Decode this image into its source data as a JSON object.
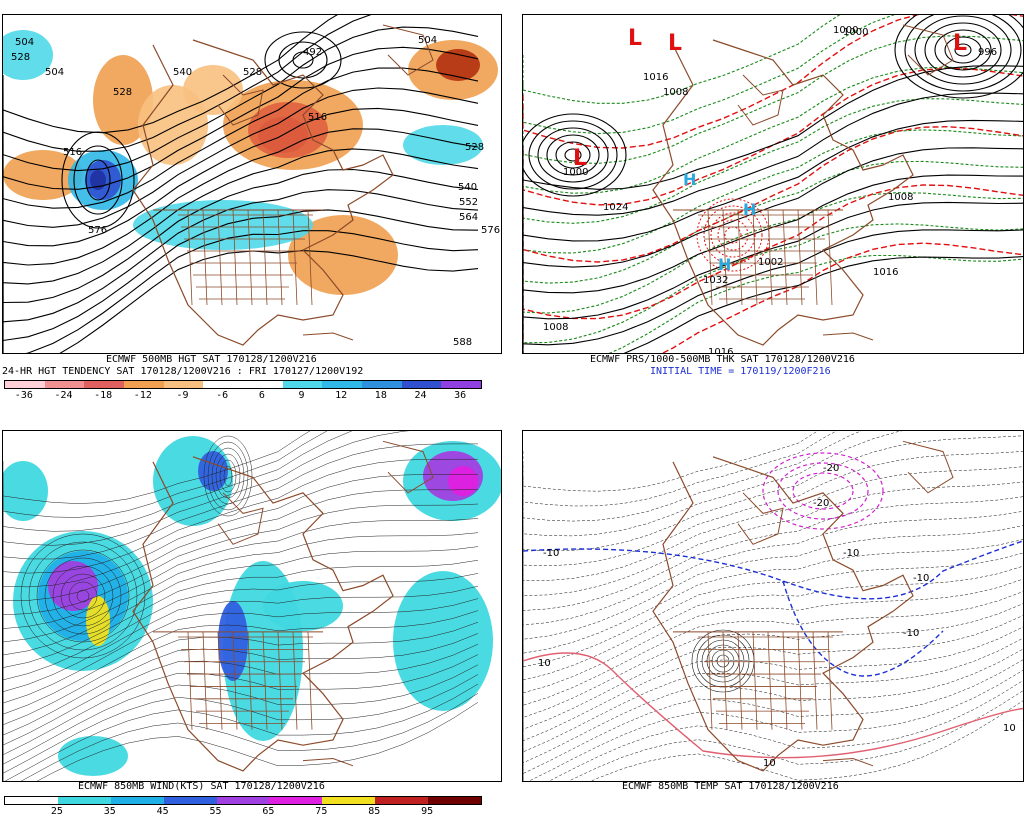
{
  "panels": {
    "height_500mb": {
      "caption_line1": "ECMWF 500MB HGT SAT 170128/1200V216",
      "caption_line2": "24-HR HGT TENDENCY SAT 170128/1200V216 : FRI 170127/1200V192",
      "contour_labels": [
        "504",
        "504",
        "528",
        "492",
        "516",
        "540",
        "528",
        "516",
        "576",
        "528",
        "540",
        "552",
        "564",
        "576",
        "588",
        "528",
        "504"
      ],
      "colorbar_ticks": [
        "-36",
        "-24",
        "-18",
        "-12",
        "-9",
        "-6",
        "6",
        "9",
        "12",
        "18",
        "24",
        "36"
      ],
      "colorbar_colors": [
        "#ffd0d8",
        "#f09090",
        "#e06060",
        "#f0a050",
        "#f8c080",
        "#ffffff",
        "#ffffff",
        "#50d8e8",
        "#30b8e8",
        "#3090e0",
        "#3050d0",
        "#9040e0"
      ]
    },
    "surface_pressure": {
      "caption_line1": "ECMWF PRS/1000-500MB THK SAT 170128/1200V216",
      "caption_line2": "INITIAL TIME = 170119/1200F216",
      "pressure_labels": [
        "1000",
        "1016",
        "1008",
        "1000",
        "1024",
        "1002",
        "1008",
        "1016",
        "1032",
        "1008",
        "1016",
        "1000",
        "996"
      ],
      "center_labels": [
        "L",
        "L",
        "L",
        "L",
        "H",
        "H",
        "H"
      ]
    },
    "wind_850mb": {
      "caption_line1": "ECMWF 850MB WIND(KTS) SAT 170128/1200V216",
      "colorbar_ticks": [
        "25",
        "35",
        "45",
        "55",
        "65",
        "75",
        "85",
        "95"
      ],
      "colorbar_colors": [
        "#ffffff",
        "#40d8e0",
        "#20b0e8",
        "#3060e0",
        "#a040e0",
        "#e020e0",
        "#f0e020",
        "#c02020",
        "#700000"
      ]
    },
    "temp_850mb": {
      "caption_line1": "ECMWF 850MB TEMP SAT 170128/1200V216",
      "isotherm_labels": [
        "-10",
        "-20",
        "-10",
        "-10",
        "10",
        "10",
        "-10",
        "-20",
        "10"
      ]
    }
  },
  "colors": {
    "land_border": "#8b4a2a",
    "cold": "#1c2fd6",
    "warm": "#e06070",
    "magenta": "#d020d0",
    "red_thk": "#e01010",
    "green_thk": "#1a8a1a"
  }
}
